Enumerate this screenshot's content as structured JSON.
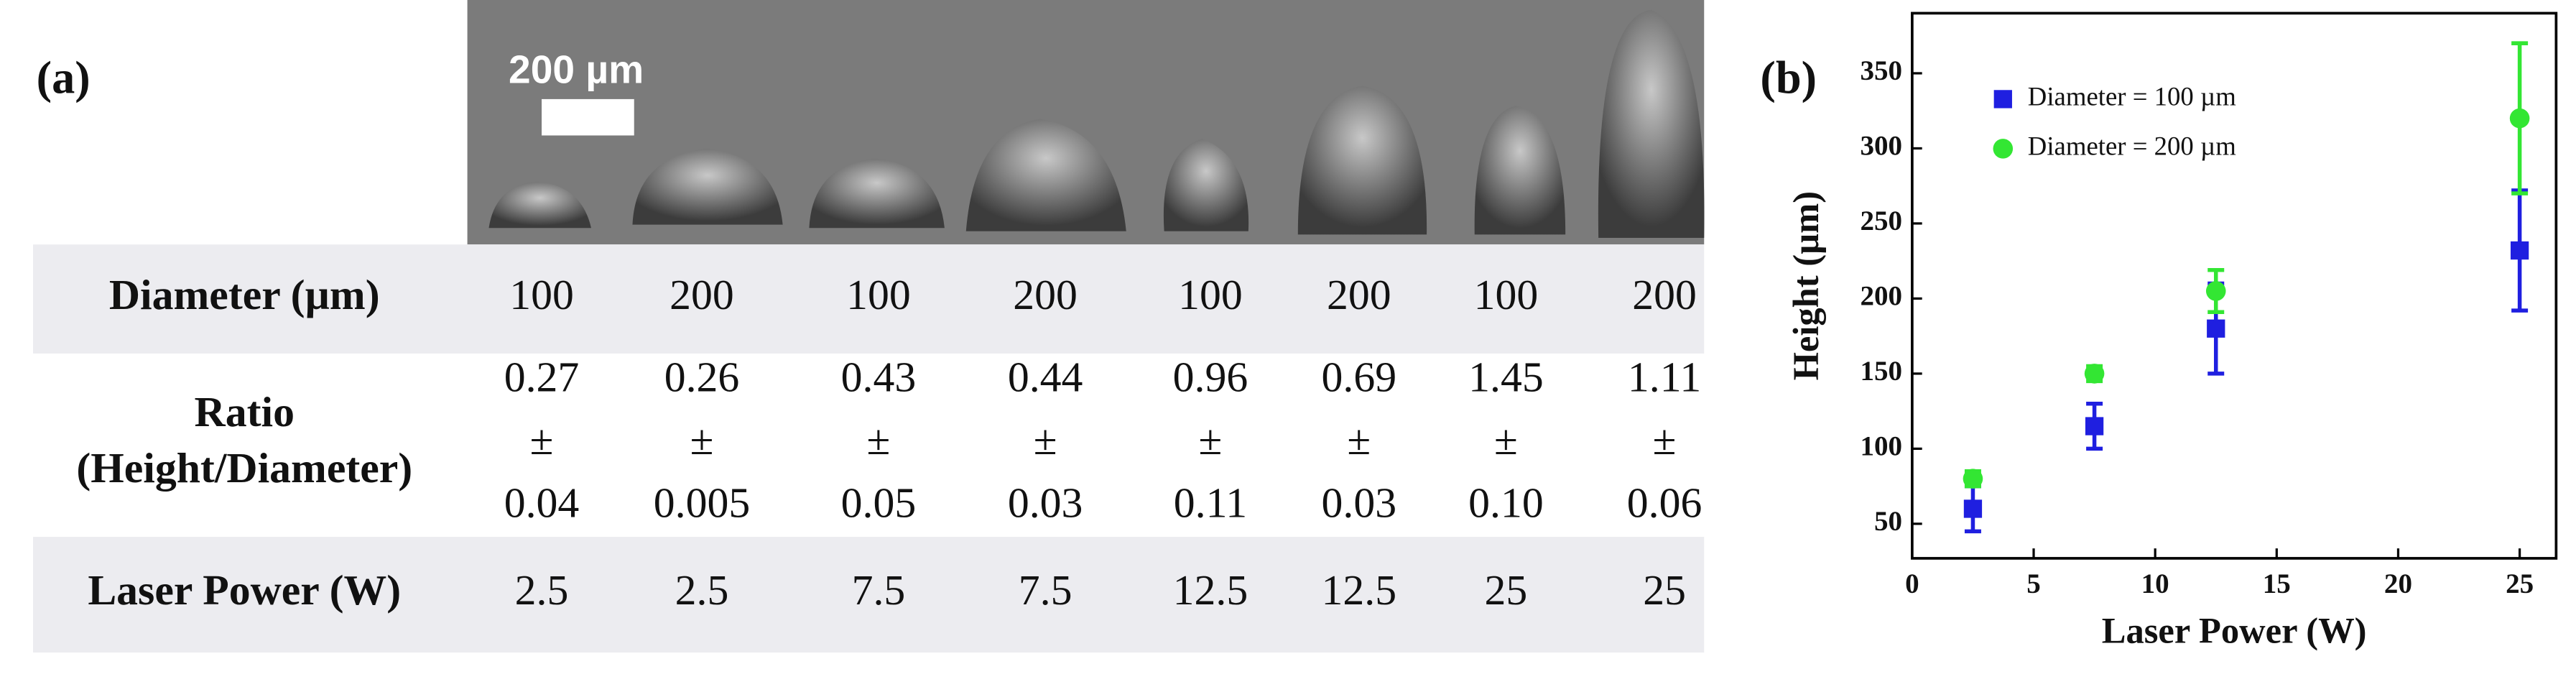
{
  "panel_a": {
    "label": "(a)",
    "scale_bar": "200 µm",
    "table": {
      "rows": [
        {
          "label": "Diameter (µm)",
          "cells": [
            "100",
            "200",
            "100",
            "200",
            "100",
            "200",
            "100",
            "200"
          ]
        },
        {
          "label": [
            "Ratio",
            "(Height/Diameter)"
          ],
          "cells": [
            [
              "0.27",
              "±",
              "0.04"
            ],
            [
              "0.26",
              "±",
              "0.005"
            ],
            [
              "0.43",
              "±",
              "0.05"
            ],
            [
              "0.44",
              "±",
              "0.03"
            ],
            [
              "0.96",
              "±",
              "0.11"
            ],
            [
              "0.69",
              "±",
              "0.03"
            ],
            [
              "1.45",
              "±",
              "0.10"
            ],
            [
              "1.11",
              "±",
              "0.06"
            ]
          ]
        },
        {
          "label": "Laser Power (W)",
          "cells": [
            "2.5",
            "2.5",
            "7.5",
            "7.5",
            "12.5",
            "12.5",
            "25",
            "25"
          ]
        }
      ]
    }
  },
  "chart_data": {
    "type": "scatter",
    "panel_label": "(b)",
    "x_label": "Laser Power (W)",
    "y_label": "Height (µm)",
    "x": [
      2.5,
      7.5,
      12.5,
      25
    ],
    "xlim": [
      0,
      26.5
    ],
    "xticks": [
      0,
      5,
      10,
      15,
      20,
      25
    ],
    "ylim": [
      27,
      390
    ],
    "yticks": [
      50,
      100,
      150,
      200,
      250,
      300,
      350
    ],
    "legend": "upper left",
    "series": [
      {
        "name": "Diameter = 100 µm",
        "color": "#1f1fe0",
        "marker": "square",
        "values": [
          60,
          115,
          180,
          232
        ],
        "errors": [
          15,
          15,
          30,
          40
        ]
      },
      {
        "name": "Diameter = 200 µm",
        "color": "#33e633",
        "marker": "circle",
        "values": [
          80,
          150,
          205,
          320
        ],
        "errors": [
          5,
          5,
          14,
          50
        ]
      }
    ]
  }
}
